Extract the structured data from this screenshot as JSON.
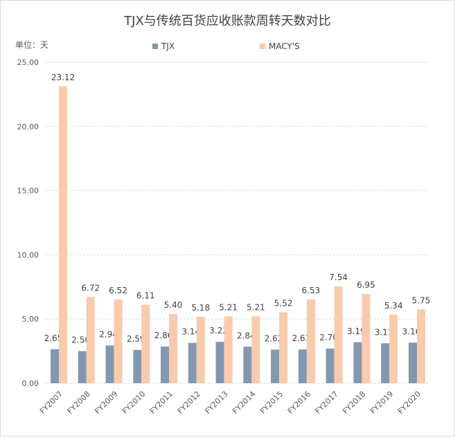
{
  "chart_data": {
    "type": "bar",
    "title": "TJX与传统百货应收账款周转天数对比",
    "unit_label": "单位：天",
    "categories": [
      "FY2007",
      "FY2008",
      "FY2009",
      "FY2010",
      "FY2011",
      "FY2012",
      "FY2013",
      "FY2014",
      "FY2015",
      "FY2016",
      "FY2017",
      "FY2018",
      "FY2019",
      "FY2020"
    ],
    "series": [
      {
        "name": "TJX",
        "color": "#8497b0",
        "values": [
          2.65,
          2.5,
          2.94,
          2.59,
          2.86,
          3.14,
          3.22,
          2.84,
          2.62,
          2.63,
          2.7,
          3.19,
          3.11,
          3.16
        ]
      },
      {
        "name": "MACY'S",
        "color": "#f8cbad",
        "values": [
          23.12,
          6.72,
          6.52,
          6.11,
          5.4,
          5.18,
          5.21,
          5.21,
          5.52,
          6.53,
          7.54,
          6.95,
          5.34,
          5.75
        ]
      }
    ],
    "ylim": [
      0,
      25
    ],
    "yticks": [
      "0.00",
      "5.00",
      "10.00",
      "15.00",
      "20.00",
      "25.00"
    ],
    "grid": true,
    "legend_position": "top"
  }
}
